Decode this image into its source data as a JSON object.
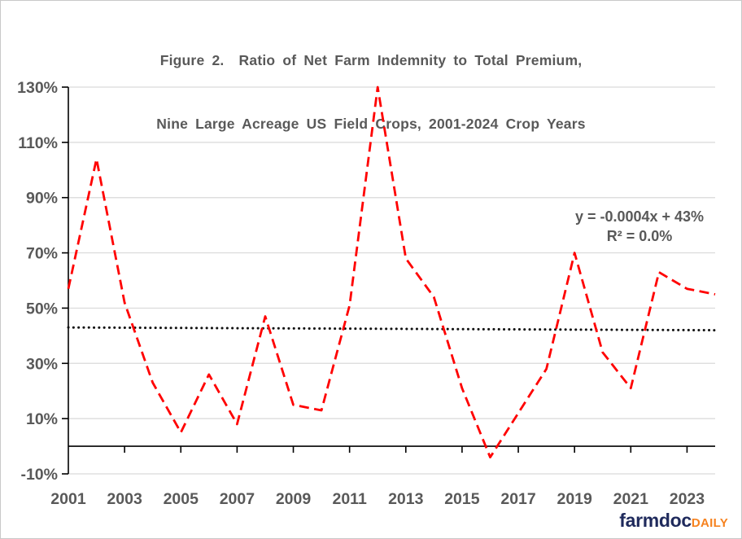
{
  "title": {
    "line1": "Figure 2.  Ratio of Net Farm Indemnity to Total Premium,",
    "line2": "Nine Large Acreage US Field Crops, 2001-2024 Crop Years"
  },
  "annotation": {
    "equation": "y = -0.0004x + 43%",
    "r_squared": "R² = 0.0%"
  },
  "branding": {
    "name": "farmdoc",
    "suffix": "DAILY",
    "name_color": "#1f2a5c",
    "suffix_color": "#f6821f"
  },
  "colors": {
    "series_red": "#ff0000",
    "trendline_black": "#111111",
    "gridline": "#d9d9d9",
    "axis": "#000000",
    "tick_label": "#595959",
    "title_text": "#595959"
  },
  "chart_data": {
    "type": "line",
    "title": "Figure 2. Ratio of Net Farm Indemnity to Total Premium, Nine Large Acreage US Field Crops, 2001-2024 Crop Years",
    "x": [
      2001,
      2002,
      2003,
      2004,
      2005,
      2006,
      2007,
      2008,
      2009,
      2010,
      2011,
      2012,
      2013,
      2014,
      2015,
      2016,
      2017,
      2018,
      2019,
      2020,
      2021,
      2022,
      2023,
      2024
    ],
    "series": [
      {
        "name": "Ratio of net farm indemnity to total premium (%)",
        "style": "dashed",
        "values": [
          57,
          104,
          52,
          23,
          5,
          26,
          8,
          47,
          15,
          13,
          51,
          130,
          68,
          54,
          21,
          -4,
          12,
          28,
          70,
          34,
          21,
          63,
          57,
          55
        ]
      },
      {
        "name": "Linear trendline y = -0.0004x + 43%, R² = 0.0%",
        "style": "dotted",
        "endpoint_values": [
          43.0,
          42.0
        ]
      }
    ],
    "xlabel": "",
    "ylabel": "",
    "ylim": [
      -10,
      130
    ],
    "y_tick_values": [
      -10,
      10,
      30,
      50,
      70,
      90,
      110,
      130
    ],
    "y_tick_labels": [
      "-10%",
      "10%",
      "30%",
      "50%",
      "70%",
      "90%",
      "110%",
      "130%"
    ],
    "x_tick_years": [
      2001,
      2003,
      2005,
      2007,
      2009,
      2011,
      2013,
      2015,
      2017,
      2019,
      2021,
      2023
    ],
    "x_tick_labels": [
      "2001",
      "2003",
      "2005",
      "2007",
      "2009",
      "2011",
      "2013",
      "2015",
      "2017",
      "2019",
      "2021",
      "2023"
    ],
    "grid": "horizontal",
    "legend_position": "none",
    "zero_axis_line": true
  }
}
